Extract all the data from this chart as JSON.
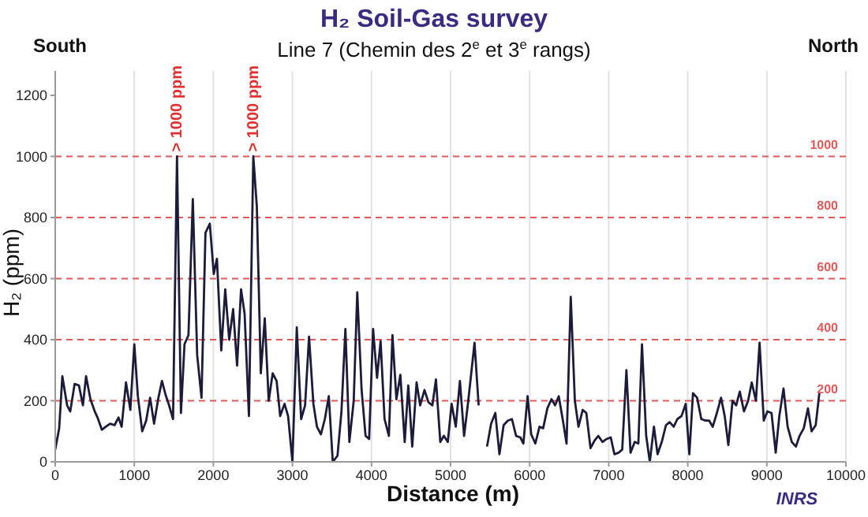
{
  "chart_data": {
    "type": "line",
    "title": "H₂ Soil-Gas survey",
    "subtitle": "Line 7 (Chemin des  2$^{e}$ et 3$^{e}$ rangs)",
    "xlabel": "Distance (m)",
    "ylabel": "H₂ (ppm)",
    "x": [
      0,
      50,
      90,
      150,
      190,
      245,
      300,
      350,
      390,
      445,
      500,
      535,
      590,
      640,
      695,
      750,
      800,
      840,
      895,
      950,
      1000,
      1045,
      1100,
      1150,
      1200,
      1250,
      1305,
      1350,
      1395,
      1440,
      1490,
      1540,
      1590,
      1635,
      1685,
      1740,
      1795,
      1850,
      1900,
      1955,
      2005,
      2045,
      2100,
      2150,
      2200,
      2250,
      2300,
      2350,
      2395,
      2450,
      2505,
      2550,
      2600,
      2650,
      2700,
      2750,
      2800,
      2845,
      2900,
      2945,
      3000,
      3055,
      3110,
      3160,
      3210,
      3265,
      3310,
      3360,
      3410,
      3460,
      3510,
      3570,
      3620,
      3670,
      3720,
      3775,
      3820,
      3875,
      3925,
      3970,
      4020,
      4070,
      4115,
      4165,
      4220,
      4265,
      4315,
      4365,
      4420,
      4465,
      4515,
      4570,
      4615,
      4670,
      4720,
      4770,
      4815,
      4870,
      4915,
      4965,
      5013,
      5066,
      5118,
      5171,
      5224,
      5303,
      5355,
      5400,
      5461,
      5513,
      5566,
      5618,
      5671,
      5724,
      5776,
      5829,
      5882,
      5921,
      5974,
      6020,
      6072,
      6125,
      6171,
      6224,
      6276,
      6322,
      6368,
      6421,
      6467,
      6520,
      6572,
      6618,
      6671,
      6717,
      6770,
      6822,
      6868,
      6921,
      6974,
      7026,
      7072,
      7125,
      7171,
      7224,
      7276,
      7329,
      7375,
      7421,
      7474,
      7520,
      7572,
      7618,
      7671,
      7724,
      7770,
      7822,
      7868,
      7921,
      7974,
      8020,
      8066,
      8118,
      8171,
      8224,
      8270,
      8316,
      8368,
      8421,
      8467,
      8513,
      8566,
      8612,
      8658,
      8711,
      8763,
      8809,
      8862,
      8908,
      8961,
      9007,
      9059,
      9112,
      9158,
      9211,
      9263,
      9316,
      9368,
      9414,
      9467,
      9520,
      9566,
      9618,
      9664
    ],
    "series": [
      {
        "color": "#1c1c3a",
        "values": [
          40,
          110,
          280,
          185,
          165,
          255,
          250,
          185,
          280,
          205,
          165,
          145,
          105,
          115,
          125,
          120,
          145,
          115,
          260,
          170,
          385,
          215,
          100,
          135,
          210,
          125,
          210,
          265,
          220,
          185,
          140,
          1000,
          160,
          385,
          415,
          860,
          350,
          210,
          750,
          780,
          615,
          665,
          365,
          565,
          400,
          500,
          315,
          565,
          485,
          150,
          1000,
          835,
          290,
          470,
          200,
          290,
          265,
          150,
          190,
          150,
          0,
          440,
          140,
          185,
          410,
          190,
          115,
          90,
          140,
          215,
          0,
          20,
          165,
          435,
          65,
          200,
          555,
          235,
          85,
          75,
          435,
          275,
          395,
          140,
          85,
          415,
          205,
          285,
          65,
          250,
          50,
          260,
          185,
          235,
          195,
          185,
          270,
          65,
          85,
          65,
          190,
          115,
          265,
          85,
          200,
          390,
          185,
          null,
          50,
          125,
          160,
          25,
          120,
          135,
          140,
          85,
          80,
          60,
          215,
          90,
          60,
          115,
          110,
          175,
          205,
          185,
          215,
          135,
          60,
          540,
          200,
          115,
          170,
          160,
          45,
          70,
          85,
          65,
          75,
          80,
          25,
          30,
          40,
          300,
          30,
          65,
          60,
          385,
          85,
          0,
          115,
          25,
          65,
          120,
          130,
          115,
          140,
          150,
          190,
          25,
          225,
          210,
          140,
          135,
          135,
          115,
          160,
          210,
          150,
          55,
          200,
          185,
          230,
          165,
          200,
          260,
          200,
          390,
          135,
          165,
          160,
          30,
          150,
          240,
          115,
          65,
          50,
          85,
          110,
          175,
          100,
          120,
          225
        ]
      }
    ],
    "xlim": [
      0,
      10000
    ],
    "xticks": [
      0,
      1000,
      2000,
      3000,
      4000,
      5000,
      6000,
      7000,
      8000,
      9000,
      10000
    ],
    "ylim": [
      0,
      1280
    ],
    "yticks": [
      0,
      200,
      400,
      600,
      800,
      1000,
      1200
    ],
    "grid": "x",
    "marker": "none",
    "line_style": "solid",
    "legend": false,
    "ref_lines": [
      {
        "axis": "y",
        "value": 200,
        "label": "200",
        "color": "#e05a5a",
        "line_style": "dashed"
      },
      {
        "axis": "y",
        "value": 400,
        "label": "400",
        "color": "#e05a5a",
        "line_style": "dashed"
      },
      {
        "axis": "y",
        "value": 600,
        "label": "600",
        "color": "#e05a5a",
        "line_style": "dashed"
      },
      {
        "axis": "y",
        "value": 800,
        "label": "800",
        "color": "#e05a5a",
        "line_style": "dashed"
      },
      {
        "axis": "y",
        "value": 1000,
        "label": "1000",
        "color": "#e05a5a",
        "line_style": "dashed"
      }
    ],
    "annotations": [
      {
        "text": "> 1000 ppm",
        "x": 1540,
        "y": 1000
      },
      {
        "text": "> 1000 ppm",
        "x": 2505,
        "y": 1000
      },
      "South",
      "North",
      "INRS"
    ]
  }
}
